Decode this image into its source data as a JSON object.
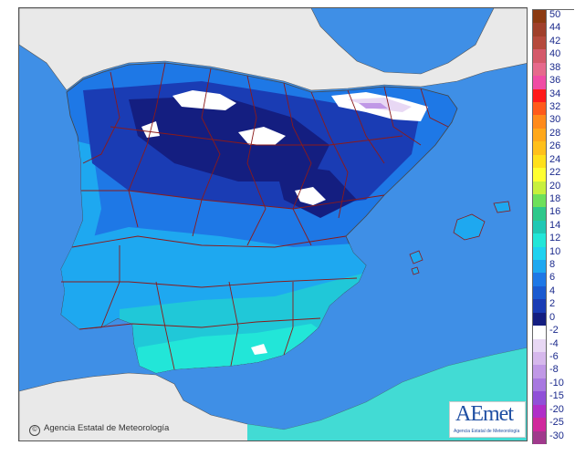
{
  "map": {
    "copyright_text": "Agencia Estatal de Meteorología",
    "copyright_symbol": "©",
    "logo_text": "AEmet",
    "logo_subtitle": "Agencia Estatal de Meteorología",
    "colors": {
      "sea": "#3f8fe6",
      "foreign_land": "#e9e9e9",
      "province_border": "#8b1a1a",
      "coast": "#555555"
    }
  },
  "legend": {
    "items": [
      {
        "label": "50",
        "color": "#8c3a10"
      },
      {
        "label": "44",
        "color": "#a0402a"
      },
      {
        "label": "42",
        "color": "#b54a3c"
      },
      {
        "label": "40",
        "color": "#d45a6a"
      },
      {
        "label": "38",
        "color": "#e66a8c"
      },
      {
        "label": "36",
        "color": "#f04ca4"
      },
      {
        "label": "34",
        "color": "#ff1a1a"
      },
      {
        "label": "32",
        "color": "#ff5a1a"
      },
      {
        "label": "30",
        "color": "#ff8a1a"
      },
      {
        "label": "28",
        "color": "#ffa81a"
      },
      {
        "label": "26",
        "color": "#ffc01a"
      },
      {
        "label": "24",
        "color": "#ffe01a"
      },
      {
        "label": "22",
        "color": "#ffff30"
      },
      {
        "label": "20",
        "color": "#c8f03c"
      },
      {
        "label": "18",
        "color": "#6ee05a"
      },
      {
        "label": "16",
        "color": "#2ec88a"
      },
      {
        "label": "14",
        "color": "#20c8b4"
      },
      {
        "label": "12",
        "color": "#22e6d8"
      },
      {
        "label": "10",
        "color": "#1ed2f0"
      },
      {
        "label": "8",
        "color": "#1ea8f0"
      },
      {
        "label": "6",
        "color": "#1e78e6"
      },
      {
        "label": "4",
        "color": "#1a5ad0"
      },
      {
        "label": "2",
        "color": "#1a3cb4"
      },
      {
        "label": "0",
        "color": "#141e80"
      },
      {
        "label": "-2",
        "color": "#ffffff"
      },
      {
        "label": "-4",
        "color": "#e8d8f4"
      },
      {
        "label": "-6",
        "color": "#d6b8ec"
      },
      {
        "label": "-8",
        "color": "#c098e6"
      },
      {
        "label": "-10",
        "color": "#a878e0"
      },
      {
        "label": "-15",
        "color": "#9050d8"
      },
      {
        "label": "-20",
        "color": "#b02ec8"
      },
      {
        "label": "-25",
        "color": "#d0289c"
      },
      {
        "label": "-30",
        "color": "#a03a8c"
      }
    ]
  }
}
